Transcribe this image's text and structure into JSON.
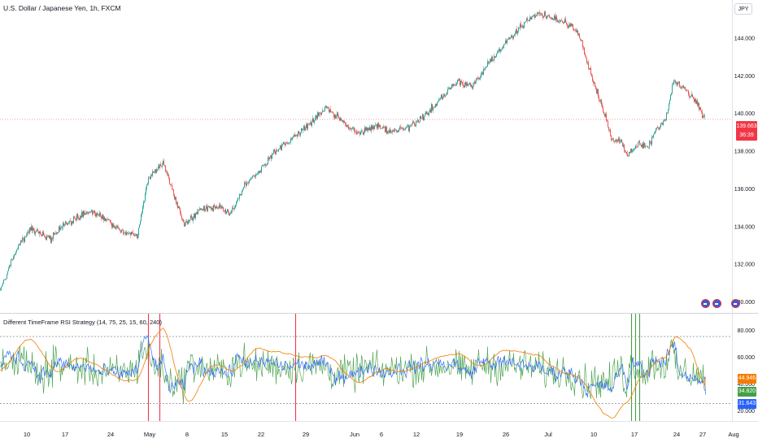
{
  "header": {
    "title": "U.S. Dollar / Japanese Yen, 1h, FXCM",
    "symbol_badge": "JPY"
  },
  "indicator": {
    "title": "Different TimeFrame RSI Strategy (14, 75, 25, 15, 60, 240)"
  },
  "last_price": {
    "value": "139.663",
    "countdown": "36:39",
    "color": "#f23645"
  },
  "rsi_readouts": [
    {
      "value": "44.946",
      "color": "#f57c00",
      "series": "rsi-240"
    },
    {
      "value": "34.820",
      "color": "#43a047",
      "series": "rsi-15"
    },
    {
      "value": "31.643",
      "color": "#2962ff",
      "series": "rsi-60"
    }
  ],
  "chart_data": [
    {
      "type": "candlestick",
      "price_axis": [
        "130.000",
        "132.000",
        "134.000",
        "136.000",
        "138.000",
        "140.000",
        "142.000",
        "144.000"
      ],
      "ylim": [
        129.4,
        146.0
      ],
      "close_anchors": [
        {
          "t": 0,
          "v": 130.6
        },
        {
          "t": 20,
          "v": 132.8
        },
        {
          "t": 38,
          "v": 133.9
        },
        {
          "t": 62,
          "v": 133.3
        },
        {
          "t": 80,
          "v": 134.2
        },
        {
          "t": 112,
          "v": 134.8
        },
        {
          "t": 130,
          "v": 134.4
        },
        {
          "t": 150,
          "v": 133.7
        },
        {
          "t": 168,
          "v": 133.5
        },
        {
          "t": 182,
          "v": 136.6
        },
        {
          "t": 200,
          "v": 137.4
        },
        {
          "t": 212,
          "v": 135.9
        },
        {
          "t": 226,
          "v": 134.1
        },
        {
          "t": 245,
          "v": 134.9
        },
        {
          "t": 270,
          "v": 135.0
        },
        {
          "t": 282,
          "v": 134.6
        },
        {
          "t": 300,
          "v": 136.1
        },
        {
          "t": 318,
          "v": 136.9
        },
        {
          "t": 336,
          "v": 137.9
        },
        {
          "t": 360,
          "v": 138.7
        },
        {
          "t": 382,
          "v": 139.5
        },
        {
          "t": 400,
          "v": 140.3
        },
        {
          "t": 420,
          "v": 139.6
        },
        {
          "t": 440,
          "v": 138.9
        },
        {
          "t": 460,
          "v": 139.3
        },
        {
          "t": 480,
          "v": 139.0
        },
        {
          "t": 500,
          "v": 139.2
        },
        {
          "t": 520,
          "v": 139.8
        },
        {
          "t": 540,
          "v": 140.7
        },
        {
          "t": 562,
          "v": 141.7
        },
        {
          "t": 580,
          "v": 141.4
        },
        {
          "t": 600,
          "v": 142.6
        },
        {
          "t": 620,
          "v": 143.7
        },
        {
          "t": 640,
          "v": 144.6
        },
        {
          "t": 660,
          "v": 145.3
        },
        {
          "t": 680,
          "v": 145.0
        },
        {
          "t": 700,
          "v": 144.7
        },
        {
          "t": 712,
          "v": 144.1
        },
        {
          "t": 726,
          "v": 142.1
        },
        {
          "t": 740,
          "v": 140.3
        },
        {
          "t": 752,
          "v": 138.6
        },
        {
          "t": 764,
          "v": 138.5
        },
        {
          "t": 770,
          "v": 137.7
        },
        {
          "t": 784,
          "v": 138.4
        },
        {
          "t": 796,
          "v": 138.2
        },
        {
          "t": 806,
          "v": 139.1
        },
        {
          "t": 818,
          "v": 139.7
        },
        {
          "t": 828,
          "v": 141.7
        },
        {
          "t": 840,
          "v": 141.3
        },
        {
          "t": 852,
          "v": 140.8
        },
        {
          "t": 866,
          "v": 139.7
        }
      ]
    },
    {
      "type": "line",
      "title": "Different TimeFrame RSI Strategy (14, 75, 25, 15, 60, 240)",
      "levels": [
        75,
        25
      ],
      "ylim": [
        12,
        92
      ],
      "y_axis": [
        "20.000",
        "40.000",
        "60.000",
        "80.000"
      ],
      "x_axis": [
        "10",
        "17",
        "24",
        "May",
        "8",
        "15",
        "22",
        "29",
        "Jun",
        "6",
        "12",
        "19",
        "26",
        "Jul",
        "10",
        "17",
        "24",
        "27",
        "Aug"
      ],
      "series": [
        {
          "name": "rsi-15",
          "color": "#43a047",
          "last": 34.82
        },
        {
          "name": "rsi-60",
          "color": "#2962ff",
          "last": 31.643
        },
        {
          "name": "rsi-240",
          "color": "#f57c00",
          "last": 44.946
        }
      ],
      "signals": [
        {
          "t": 182,
          "color": "#f23645"
        },
        {
          "t": 196,
          "color": "#f23645"
        },
        {
          "t": 363,
          "color": "#f23645"
        },
        {
          "t": 776,
          "color": "#43a047"
        },
        {
          "t": 781,
          "color": "#43a047"
        },
        {
          "t": 786,
          "color": "#43a047"
        }
      ]
    }
  ]
}
